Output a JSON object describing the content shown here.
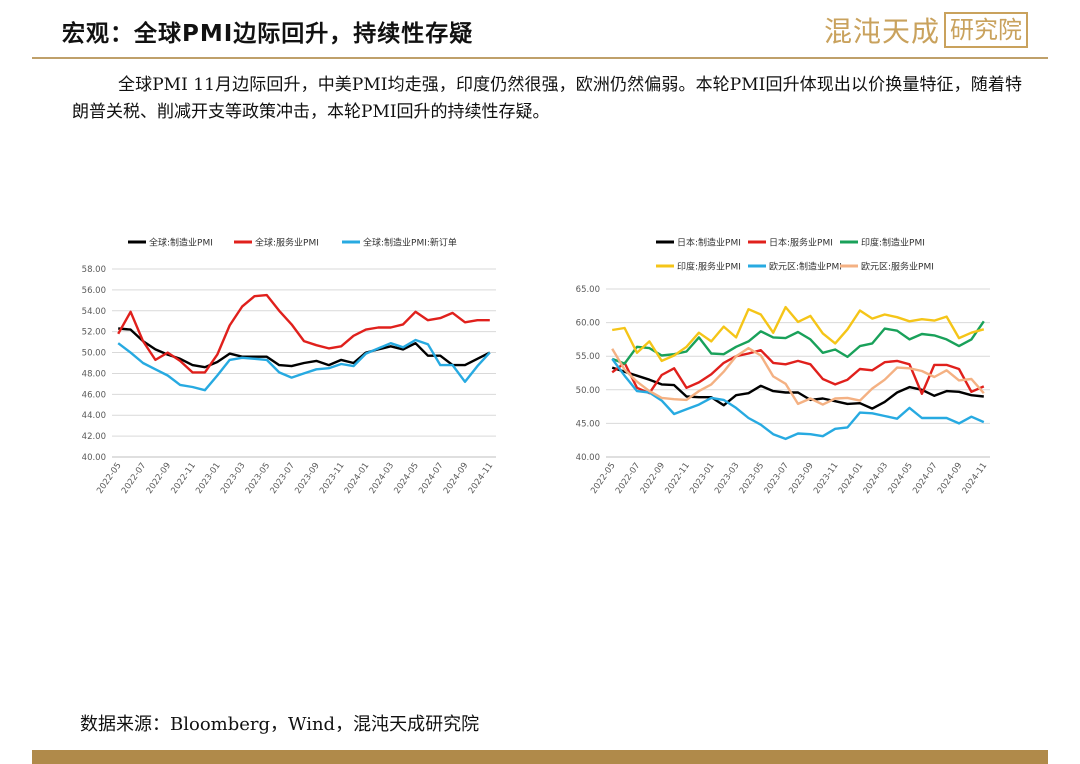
{
  "header": {
    "title": "宏观：全球PMI边际回升，持续性存疑",
    "logo_text": "混沌天成",
    "logo_box": "研究院"
  },
  "intro": "全球PMI 11月边际回升，中美PMI均走强，印度仍然很强，欧洲仍然偏弱。本轮PMI回升体现出以价换量特征，随着特朗普关税、削减开支等政策冲击，本轮PMI回升的持续性存疑。",
  "source": "数据来源：Bloomberg，Wind，混沌天成研究院",
  "chart_data": [
    {
      "type": "line",
      "x": [
        "2022-05",
        "2022-06",
        "2022-07",
        "2022-08",
        "2022-09",
        "2022-10",
        "2022-11",
        "2022-12",
        "2023-01",
        "2023-02",
        "2023-03",
        "2023-04",
        "2023-05",
        "2023-06",
        "2023-07",
        "2023-08",
        "2023-09",
        "2023-10",
        "2023-11",
        "2023-12",
        "2024-01",
        "2024-02",
        "2024-03",
        "2024-04",
        "2024-05",
        "2024-06",
        "2024-07",
        "2024-08",
        "2024-09",
        "2024-10",
        "2024-11"
      ],
      "x_tick_labels": [
        "2022-05",
        "2022-07",
        "2022-09",
        "2022-11",
        "2023-01",
        "2023-03",
        "2023-05",
        "2023-07",
        "2023-09",
        "2023-11",
        "2024-01",
        "2024-03",
        "2024-05",
        "2024-07",
        "2024-09",
        "2024-11"
      ],
      "y_tick_labels": [
        "40.00",
        "42.00",
        "44.00",
        "46.00",
        "48.00",
        "50.00",
        "52.00",
        "54.00",
        "56.00",
        "58.00"
      ],
      "ylim": [
        40,
        58
      ],
      "grid": true,
      "legend_position": "top",
      "series": [
        {
          "name": "全球:制造业PMI",
          "color": "#000000",
          "values": [
            52.3,
            52.2,
            51.1,
            50.3,
            49.8,
            49.4,
            48.8,
            48.6,
            49.1,
            49.9,
            49.6,
            49.6,
            49.6,
            48.8,
            48.7,
            49.0,
            49.2,
            48.8,
            49.3,
            49.0,
            50.0,
            50.3,
            50.6,
            50.3,
            50.9,
            49.7,
            49.7,
            48.8,
            48.8,
            49.4,
            50.0
          ]
        },
        {
          "name": "全球:服务业PMI",
          "color": "#e0201c",
          "values": [
            51.8,
            53.9,
            51.1,
            49.3,
            50.0,
            49.2,
            48.1,
            48.1,
            49.8,
            52.6,
            54.4,
            55.4,
            55.5,
            54.0,
            52.7,
            51.1,
            50.7,
            50.4,
            50.6,
            51.6,
            52.2,
            52.4,
            52.4,
            52.7,
            53.9,
            53.1,
            53.3,
            53.8,
            52.9,
            53.1,
            53.1
          ]
        },
        {
          "name": "全球:制造业PMI:新订单",
          "color": "#27aae1",
          "values": [
            50.9,
            50.0,
            49.0,
            48.4,
            47.8,
            46.9,
            46.7,
            46.4,
            47.8,
            49.3,
            49.5,
            49.4,
            49.3,
            48.1,
            47.6,
            48.0,
            48.4,
            48.5,
            48.9,
            48.7,
            49.9,
            50.4,
            50.9,
            50.5,
            51.2,
            50.8,
            48.8,
            48.8,
            47.2,
            48.7,
            50.0
          ]
        }
      ]
    },
    {
      "type": "line",
      "x": [
        "2022-05",
        "2022-06",
        "2022-07",
        "2022-08",
        "2022-09",
        "2022-10",
        "2022-11",
        "2022-12",
        "2023-01",
        "2023-02",
        "2023-03",
        "2023-04",
        "2023-05",
        "2023-06",
        "2023-07",
        "2023-08",
        "2023-09",
        "2023-10",
        "2023-11",
        "2023-12",
        "2024-01",
        "2024-02",
        "2024-03",
        "2024-04",
        "2024-05",
        "2024-06",
        "2024-07",
        "2024-08",
        "2024-09",
        "2024-10",
        "2024-11"
      ],
      "x_tick_labels": [
        "2022-05",
        "2022-07",
        "2022-09",
        "2022-11",
        "2023-01",
        "2023-03",
        "2023-05",
        "2023-07",
        "2023-09",
        "2023-11",
        "2024-01",
        "2024-03",
        "2024-05",
        "2024-07",
        "2024-09",
        "2024-11"
      ],
      "y_tick_labels": [
        "40.00",
        "45.00",
        "50.00",
        "55.00",
        "60.00",
        "65.00"
      ],
      "ylim": [
        40,
        65
      ],
      "grid": true,
      "legend_position": "top",
      "series": [
        {
          "name": "日本:制造业PMI",
          "color": "#000000",
          "values": [
            53.3,
            52.7,
            52.1,
            51.5,
            50.8,
            50.7,
            49.0,
            48.9,
            48.9,
            47.7,
            49.2,
            49.5,
            50.6,
            49.8,
            49.6,
            49.6,
            48.5,
            48.7,
            48.3,
            47.9,
            48.0,
            47.2,
            48.2,
            49.6,
            50.4,
            50.0,
            49.1,
            49.8,
            49.7,
            49.2,
            49.0
          ]
        },
        {
          "name": "日本:服务业PMI",
          "color": "#e0201c",
          "values": [
            52.6,
            54.0,
            50.3,
            49.5,
            52.2,
            53.2,
            50.3,
            51.1,
            52.3,
            54.0,
            55.0,
            55.4,
            55.9,
            54.0,
            53.8,
            54.3,
            53.8,
            51.6,
            50.8,
            51.5,
            53.1,
            52.9,
            54.1,
            54.3,
            53.8,
            49.4,
            53.7,
            53.7,
            53.1,
            49.7,
            50.5
          ]
        },
        {
          "name": "印度:制造业PMI",
          "color": "#19a15a",
          "values": [
            54.6,
            53.9,
            56.4,
            56.2,
            55.1,
            55.3,
            55.7,
            57.8,
            55.4,
            55.3,
            56.4,
            57.2,
            58.7,
            57.8,
            57.7,
            58.6,
            57.5,
            55.5,
            56.0,
            54.9,
            56.5,
            56.9,
            59.1,
            58.8,
            57.5,
            58.3,
            58.1,
            57.5,
            56.5,
            57.5,
            60.2
          ]
        },
        {
          "name": "印度:服务业PMI",
          "color": "#f5c518",
          "values": [
            58.9,
            59.2,
            55.5,
            57.2,
            54.3,
            55.1,
            56.4,
            58.5,
            57.2,
            59.4,
            57.8,
            62.0,
            61.2,
            58.5,
            62.3,
            60.1,
            61.0,
            58.4,
            56.9,
            59.0,
            61.8,
            60.6,
            61.2,
            60.8,
            60.2,
            60.5,
            60.3,
            60.9,
            57.7,
            58.5,
            59.0
          ]
        },
        {
          "name": "欧元区:制造业PMI",
          "color": "#27aae1",
          "values": [
            54.6,
            52.1,
            49.8,
            49.6,
            48.4,
            46.4,
            47.1,
            47.8,
            48.8,
            48.5,
            47.3,
            45.8,
            44.8,
            43.4,
            42.7,
            43.5,
            43.4,
            43.1,
            44.2,
            44.4,
            46.6,
            46.5,
            46.1,
            45.7,
            47.3,
            45.8,
            45.8,
            45.8,
            45.0,
            46.0,
            45.2
          ]
        },
        {
          "name": "欧元区:服务业PMI",
          "color": "#f4b183",
          "values": [
            56.1,
            53.0,
            51.2,
            49.8,
            48.8,
            48.6,
            48.5,
            49.8,
            50.8,
            52.7,
            55.0,
            56.2,
            55.1,
            52.0,
            50.9,
            47.9,
            48.7,
            47.8,
            48.7,
            48.8,
            48.4,
            50.2,
            51.5,
            53.3,
            53.2,
            52.8,
            51.9,
            52.9,
            51.4,
            51.6,
            49.5
          ]
        }
      ]
    }
  ]
}
